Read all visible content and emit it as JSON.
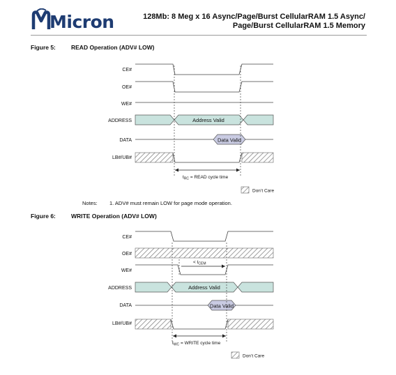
{
  "header": {
    "logo_text": "Micron",
    "title_line1": "128Mb: 8 Meg x 16 Async/Page/Burst CellularRAM 1.5 Async/",
    "title_line2": "Page/Burst CellularRAM 1.5 Memory"
  },
  "figure5": {
    "number": "Figure 5:",
    "title": "READ Operation (ADV# LOW)",
    "signals": [
      "CE#",
      "OE#",
      "WE#",
      "ADDRESS",
      "DATA",
      "LB#/UB#"
    ],
    "address_label": "Address Valid",
    "data_label": "Data Valid",
    "timing_sub": "RC",
    "timing_text": " = READ cycle time",
    "legend": "Don’t Care"
  },
  "notes": {
    "label": "Notes:",
    "items": [
      "1. ADV# must remain LOW for page mode operation."
    ]
  },
  "figure6": {
    "number": "Figure 6:",
    "title": "WRITE Operation (ADV# LOW)",
    "signals": [
      "CE#",
      "OE#",
      "WE#",
      "ADDRESS",
      "DATA",
      "LB#/UB#"
    ],
    "address_label": "Address Valid",
    "data_label": "Data Valid",
    "cem_prefix": "< t",
    "cem_sub": "CEM",
    "timing_sub": "WC",
    "timing_text": " = WRITE cycle time",
    "legend": "Don’t Care"
  }
}
